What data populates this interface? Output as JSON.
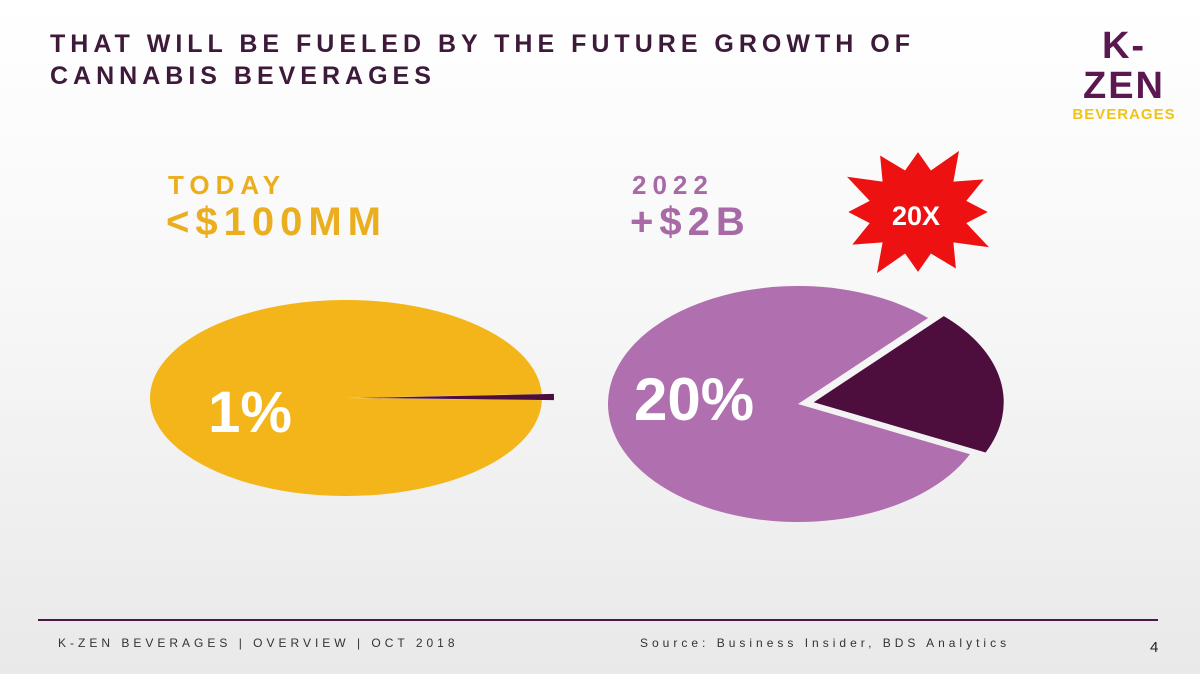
{
  "title": {
    "line1": "THAT WILL BE FUELED BY THE FUTURE GROWTH OF",
    "line2": "CANNABIS BEVERAGES"
  },
  "logo": {
    "main": "K-ZEN",
    "sub": "BEVERAGES"
  },
  "badge": {
    "text": "20X",
    "color": "#ee1111"
  },
  "colors": {
    "gold": "#f4b51a",
    "gold_text": "#eaae1f",
    "purple": "#b06fae",
    "purple_text": "#a76aa6",
    "dark_slice": "#4d0e3d"
  },
  "chart_data": [
    {
      "type": "pie",
      "label_small": "TODAY",
      "label_big": "<$100MM",
      "slices": [
        {
          "label": "1%",
          "value": 1,
          "exploded": true
        },
        {
          "label": "",
          "value": 99
        }
      ]
    },
    {
      "type": "pie",
      "label_small": "2022",
      "label_big": "+$2B",
      "slices": [
        {
          "label": "20%",
          "value": 20,
          "exploded": true
        },
        {
          "label": "",
          "value": 80
        }
      ]
    }
  ],
  "footer": {
    "left": "K-ZEN BEVERAGES | OVERVIEW | OCT 2018",
    "right": "Source: Business Insider, BDS Analytics",
    "page": "4"
  }
}
